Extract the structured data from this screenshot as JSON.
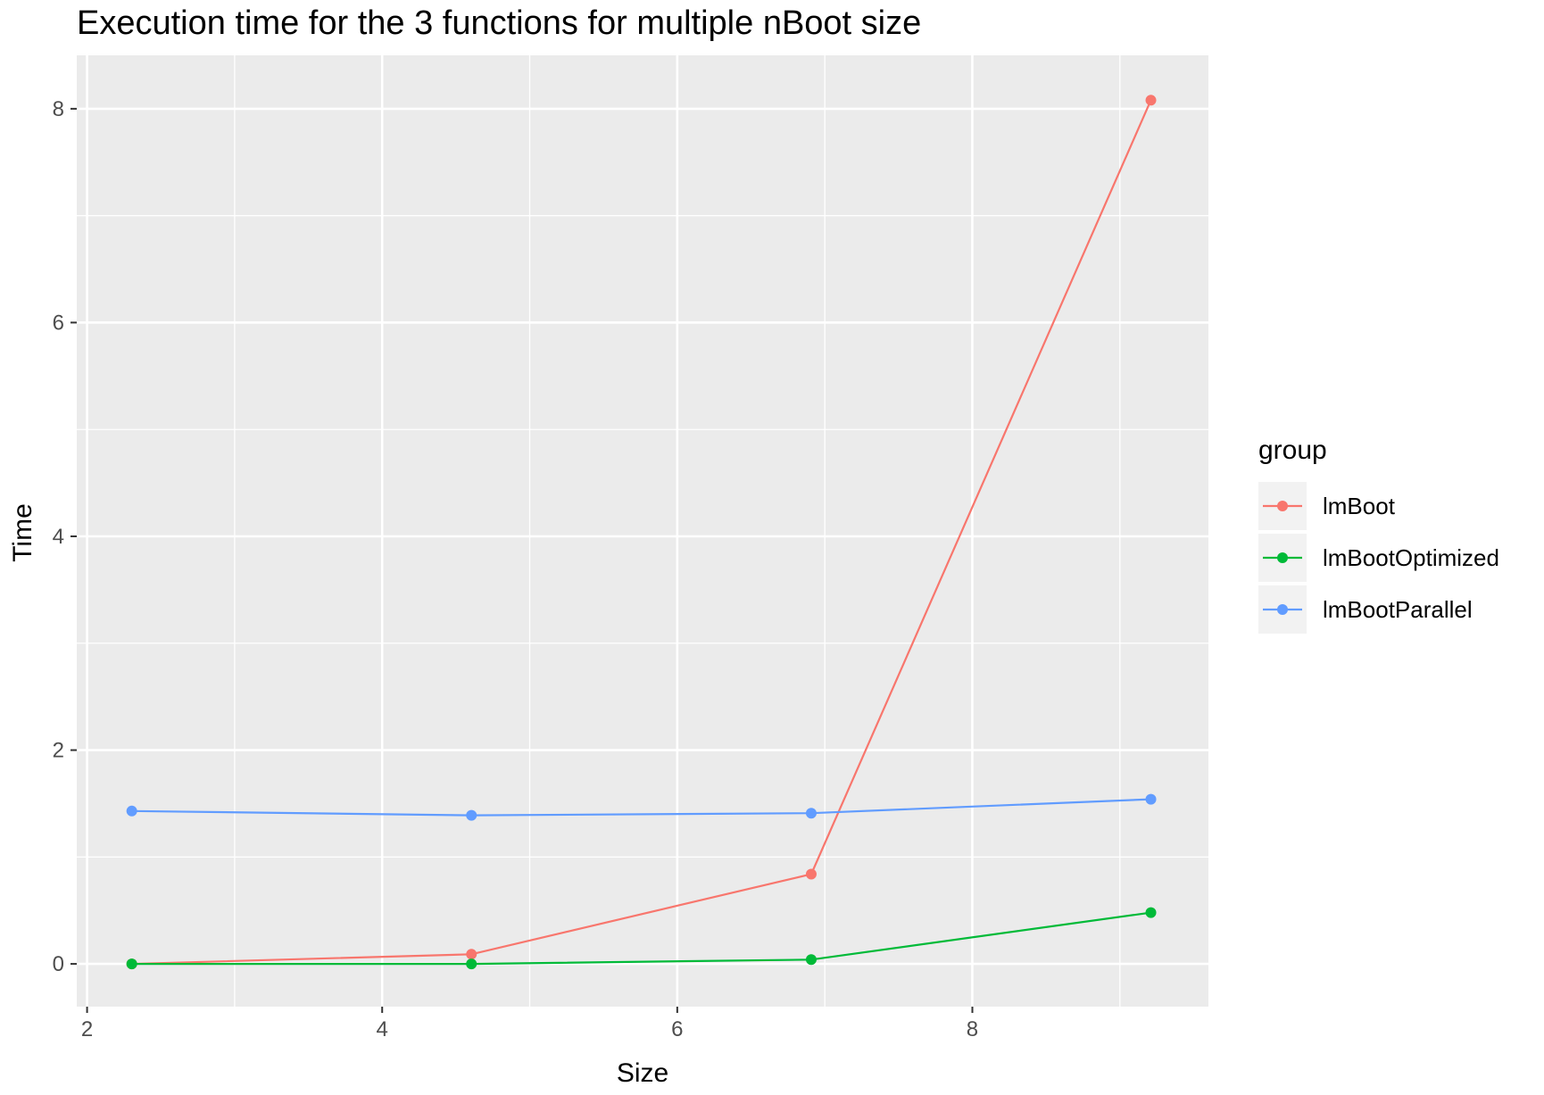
{
  "chart_data": {
    "type": "line",
    "title": "Execution time for the 3 functions for multiple nBoot size",
    "xlabel": "Size",
    "ylabel": "Time",
    "xlim": [
      1.93,
      9.6
    ],
    "ylim": [
      -0.4,
      8.5
    ],
    "x_ticks": [
      2,
      4,
      6,
      8
    ],
    "y_ticks": [
      0,
      2,
      4,
      6,
      8
    ],
    "grid": true,
    "legend_placement": "right",
    "legend_title": "group",
    "x": [
      2.303,
      4.605,
      6.908,
      9.21
    ],
    "series": [
      {
        "name": "lmBoot",
        "color": "#F8766D",
        "values": [
          0.0,
          0.09,
          0.84,
          8.08
        ]
      },
      {
        "name": "lmBootOptimized",
        "color": "#00BA38",
        "values": [
          0.0,
          0.0,
          0.04,
          0.48
        ]
      },
      {
        "name": "lmBootParallel",
        "color": "#619CFF",
        "values": [
          1.43,
          1.39,
          1.41,
          1.54
        ]
      }
    ],
    "panel_background": "#EBEBEB",
    "grid_color": "#FFFFFF"
  }
}
